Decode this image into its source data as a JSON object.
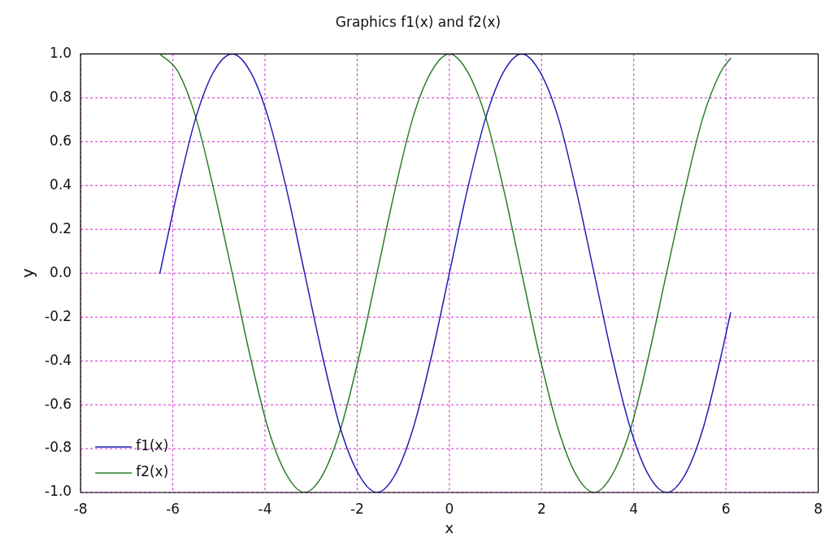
{
  "chart_data": {
    "type": "line",
    "title": "Graphics f1(x) and f2(x)",
    "xlabel": "x",
    "ylabel": "y",
    "x": [
      -6.28,
      -5.89,
      -5.5,
      -5.11,
      -4.71,
      -4.32,
      -3.93,
      -3.53,
      -3.14,
      -2.75,
      -2.36,
      -1.96,
      -1.57,
      -1.18,
      -0.79,
      -0.39,
      0,
      0.39,
      0.79,
      1.18,
      1.57,
      1.96,
      2.36,
      2.75,
      3.14,
      3.53,
      3.93,
      4.32,
      4.71,
      5.11,
      5.5,
      5.89,
      6.1
    ],
    "series": [
      {
        "name": "f1(x)",
        "color": "#1f1fb4",
        "values": [
          0,
          0.38,
          0.71,
          0.92,
          1,
          0.92,
          0.71,
          0.38,
          0,
          -0.38,
          -0.71,
          -0.92,
          -1,
          -0.92,
          -0.71,
          -0.38,
          0,
          0.38,
          0.71,
          0.92,
          1,
          0.92,
          0.71,
          0.38,
          0,
          -0.38,
          -0.71,
          -0.92,
          -1,
          -0.92,
          -0.71,
          -0.38,
          -0.18
        ]
      },
      {
        "name": "f2(x)",
        "color": "#2a7f2a",
        "values": [
          1,
          0.92,
          0.71,
          0.38,
          0,
          -0.38,
          -0.71,
          -0.92,
          -1,
          -0.92,
          -0.71,
          -0.38,
          0,
          0.38,
          0.71,
          0.92,
          1,
          0.92,
          0.71,
          0.38,
          0,
          -0.38,
          -0.71,
          -0.92,
          -1,
          -0.92,
          -0.71,
          -0.38,
          0,
          0.38,
          0.71,
          0.92,
          0.98
        ]
      }
    ],
    "xlim": [
      -8,
      8
    ],
    "xticks": [
      -8,
      -6,
      -4,
      -2,
      0,
      2,
      4,
      6,
      8
    ],
    "ylim": [
      -1,
      1
    ],
    "yticks": [
      {
        "value": -1,
        "label": "-1.0"
      },
      {
        "value": -0.8,
        "label": "-0.8"
      },
      {
        "value": -0.6,
        "label": "-0.6"
      },
      {
        "value": -0.4,
        "label": "-0.4"
      },
      {
        "value": -0.2,
        "label": "-0.2"
      },
      {
        "value": 0,
        "label": "0.0"
      },
      {
        "value": 0.2,
        "label": "0.2"
      },
      {
        "value": 0.4,
        "label": "0.4"
      },
      {
        "value": 0.6,
        "label": "0.6"
      },
      {
        "value": 0.8,
        "label": "0.8"
      },
      {
        "value": 1,
        "label": "1.0"
      }
    ],
    "grid": true,
    "legend": "bottom left",
    "marker": "none",
    "line_style": "solid"
  }
}
